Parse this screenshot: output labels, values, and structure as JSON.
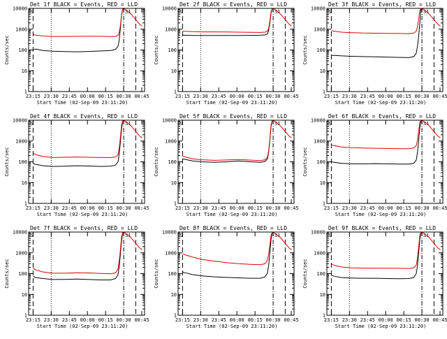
{
  "colors": {
    "events": "#000000",
    "lld": "#e00000",
    "background": "#ffffff",
    "axes": "#000000"
  },
  "common": {
    "xlabel": "Start Time (02-Sep-09 23:11:20)",
    "ylabel": "Counts/sec",
    "x_tick_labels": [
      "23:15",
      "23:30",
      "23:45",
      "00:00",
      "00:15",
      "00:30",
      "00:45"
    ],
    "y_tick_labels": [
      "1",
      "10",
      "100",
      "1000",
      "10000"
    ],
    "top_marker_labels": [
      "S",
      "S1"
    ]
  },
  "chart_data": [
    {
      "type": "line",
      "title": "Det 1f BLACK = Events, RED = LLD",
      "x_unit": "minutes after 23:11:20",
      "xlim": [
        0,
        96
      ],
      "ylim": [
        1,
        10000
      ],
      "yscale": "log",
      "vlines": {
        "dashed": [
          3.7,
          88.7
        ],
        "dotted": [
          18.7
        ],
        "dashdot": [
          78.7
        ]
      },
      "series": [
        {
          "x": [
            3.7,
            6,
            12,
            20,
            30,
            40,
            50,
            60,
            68,
            72,
            74,
            75,
            76,
            77,
            78
          ],
          "y": [
            105,
            110,
            95,
            88,
            84,
            82,
            85,
            90,
            95,
            108,
            150,
            300,
            1100,
            5000,
            10000
          ]
        },
        {
          "x": [
            3.7,
            6,
            12,
            20,
            30,
            40,
            50,
            60,
            68,
            72,
            74,
            75,
            76,
            77,
            78,
            80,
            84,
            88,
            92,
            94
          ],
          "y": [
            550,
            520,
            470,
            450,
            450,
            452,
            455,
            455,
            440,
            450,
            500,
            700,
            1500,
            5000,
            10000,
            9000,
            6000,
            3200,
            1700,
            1400
          ]
        }
      ]
    },
    {
      "type": "line",
      "title": "Det 2f BLACK = Events, RED = LLD",
      "x_unit": "minutes after 23:11:20",
      "xlim": [
        0,
        96
      ],
      "ylim": [
        1,
        10000
      ],
      "yscale": "log",
      "vlines": {
        "dashed": [
          3.7,
          88.7
        ],
        "dotted": [
          18.7
        ],
        "dashdot": [
          78.7
        ]
      },
      "series": [
        {
          "x": [
            3.7,
            6,
            12,
            20,
            30,
            40,
            50,
            60,
            68,
            72,
            74,
            75,
            76,
            77,
            78
          ],
          "y": [
            520,
            510,
            500,
            495,
            495,
            500,
            500,
            505,
            510,
            530,
            600,
            900,
            2000,
            6000,
            10000
          ]
        },
        {
          "x": [
            3.7,
            6,
            12,
            20,
            30,
            40,
            50,
            60,
            68,
            72,
            74,
            75,
            76,
            77,
            78,
            80,
            84,
            88,
            92,
            94
          ],
          "y": [
            800,
            790,
            760,
            740,
            740,
            730,
            720,
            710,
            700,
            720,
            800,
            1100,
            2500,
            7000,
            10000,
            9000,
            6000,
            3200,
            1700,
            1400
          ]
        }
      ]
    },
    {
      "type": "line",
      "title": "Det 3f BLACK = Events, RED = LLD",
      "x_unit": "minutes after 23:11:20",
      "xlim": [
        0,
        96
      ],
      "ylim": [
        1,
        10000
      ],
      "yscale": "log",
      "vlines": {
        "dashed": [
          3.7,
          88.7
        ],
        "dotted": [
          18.7
        ],
        "dashdot": [
          78.7
        ]
      },
      "series": [
        {
          "x": [
            3.7,
            6,
            12,
            20,
            30,
            40,
            50,
            60,
            68,
            72,
            74,
            75,
            76,
            77,
            78
          ],
          "y": [
            55,
            55,
            52,
            50,
            48,
            47,
            45,
            44,
            43,
            48,
            70,
            150,
            450,
            2000,
            10000
          ]
        },
        {
          "x": [
            3.7,
            6,
            12,
            20,
            30,
            40,
            50,
            60,
            68,
            72,
            74,
            75,
            76,
            77,
            78,
            80,
            84,
            88,
            92,
            94
          ],
          "y": [
            850,
            800,
            720,
            680,
            650,
            640,
            630,
            620,
            610,
            650,
            800,
            1300,
            3000,
            8000,
            10000,
            9000,
            6000,
            3200,
            1700,
            1400
          ]
        }
      ]
    },
    {
      "type": "line",
      "title": "Det 4f BLACK = Events, RED = LLD",
      "x_unit": "minutes after 23:11:20",
      "xlim": [
        0,
        96
      ],
      "ylim": [
        1,
        10000
      ],
      "yscale": "log",
      "vlines": {
        "dashed": [
          3.7,
          88.7
        ],
        "dotted": [
          18.7
        ],
        "dashdot": [
          78.7
        ]
      },
      "series": [
        {
          "x": [
            3.7,
            6,
            12,
            20,
            30,
            40,
            50,
            60,
            68,
            72,
            74,
            75,
            76,
            77,
            78
          ],
          "y": [
            80,
            75,
            65,
            60,
            62,
            65,
            63,
            60,
            62,
            70,
            100,
            250,
            900,
            4000,
            10000
          ]
        },
        {
          "x": [
            3.7,
            6,
            12,
            20,
            30,
            40,
            50,
            60,
            68,
            72,
            74,
            75,
            76,
            77,
            78,
            80,
            84,
            88,
            92,
            94
          ],
          "y": [
            260,
            220,
            180,
            160,
            165,
            170,
            165,
            160,
            160,
            170,
            220,
            450,
            1500,
            6000,
            10000,
            9000,
            6000,
            3200,
            1700,
            1400
          ]
        }
      ]
    },
    {
      "type": "line",
      "title": "Det 5f BLACK = Events, RED = LLD",
      "x_unit": "minutes after 23:11:20",
      "xlim": [
        0,
        96
      ],
      "ylim": [
        1,
        10000
      ],
      "yscale": "log",
      "vlines": {
        "dashed": [
          3.7,
          88.7
        ],
        "dotted": [
          18.7
        ],
        "dashdot": [
          78.7
        ]
      },
      "series": [
        {
          "x": [
            3.7,
            6,
            12,
            20,
            30,
            40,
            50,
            60,
            68,
            72,
            74,
            75,
            76,
            77,
            78
          ],
          "y": [
            140,
            130,
            110,
            100,
            95,
            100,
            110,
            100,
            95,
            105,
            140,
            300,
            1100,
            5000,
            10000
          ]
        },
        {
          "x": [
            3.7,
            6,
            12,
            20,
            30,
            40,
            50,
            60,
            68,
            72,
            74,
            75,
            76,
            77,
            78,
            80,
            84,
            88,
            92,
            94
          ],
          "y": [
            190,
            170,
            140,
            125,
            118,
            122,
            130,
            120,
            115,
            125,
            170,
            350,
            1300,
            6000,
            10000,
            9000,
            6000,
            3200,
            1700,
            1400
          ]
        }
      ]
    },
    {
      "type": "line",
      "title": "Det 6f BLACK = Events, RED = LLD",
      "x_unit": "minutes after 23:11:20",
      "xlim": [
        0,
        96
      ],
      "ylim": [
        1,
        10000
      ],
      "yscale": "log",
      "vlines": {
        "dashed": [
          3.7,
          88.7
        ],
        "dotted": [
          18.7
        ],
        "dashdot": [
          78.7
        ]
      },
      "series": [
        {
          "x": [
            3.7,
            6,
            12,
            20,
            30,
            40,
            50,
            60,
            68,
            72,
            74,
            75,
            76,
            77,
            78
          ],
          "y": [
            100,
            95,
            85,
            80,
            80,
            82,
            80,
            78,
            78,
            85,
            120,
            280,
            1000,
            4500,
            10000
          ]
        },
        {
          "x": [
            3.7,
            6,
            12,
            20,
            30,
            40,
            50,
            60,
            68,
            72,
            74,
            75,
            76,
            77,
            78,
            80,
            84,
            88,
            92,
            94
          ],
          "y": [
            650,
            600,
            520,
            480,
            460,
            450,
            440,
            430,
            430,
            460,
            600,
            1100,
            3000,
            8000,
            10000,
            9000,
            6000,
            3200,
            1700,
            1400
          ]
        }
      ]
    },
    {
      "type": "line",
      "title": "Det 7f BLACK = Events, RED = LLD",
      "x_unit": "minutes after 23:11:20",
      "xlim": [
        0,
        96
      ],
      "ylim": [
        1,
        10000
      ],
      "yscale": "log",
      "vlines": {
        "dashed": [
          3.7,
          88.7
        ],
        "dotted": [
          18.7
        ],
        "dashdot": [
          78.7
        ]
      },
      "series": [
        {
          "x": [
            3.7,
            6,
            12,
            20,
            30,
            40,
            50,
            60,
            68,
            72,
            74,
            75,
            76,
            77,
            78
          ],
          "y": [
            75,
            65,
            58,
            52,
            53,
            55,
            52,
            50,
            50,
            58,
            90,
            220,
            900,
            4000,
            10000
          ]
        },
        {
          "x": [
            3.7,
            6,
            12,
            20,
            30,
            40,
            50,
            60,
            68,
            72,
            74,
            75,
            76,
            77,
            78,
            80,
            84,
            88,
            92,
            94
          ],
          "y": [
            180,
            150,
            120,
            105,
            105,
            110,
            108,
            102,
            98,
            110,
            170,
            400,
            1400,
            6000,
            10000,
            9000,
            6000,
            3200,
            1700,
            1400
          ]
        }
      ]
    },
    {
      "type": "line",
      "title": "Det 8f BLACK = Events, RED = LLD",
      "x_unit": "minutes after 23:11:20",
      "xlim": [
        0,
        96
      ],
      "ylim": [
        1,
        10000
      ],
      "yscale": "log",
      "vlines": {
        "dashed": [
          3.7,
          88.7
        ],
        "dotted": [
          18.7
        ],
        "dashdot": [
          78.7
        ]
      },
      "series": [
        {
          "x": [
            3.7,
            6,
            12,
            20,
            30,
            40,
            50,
            60,
            68,
            72,
            74,
            75,
            76,
            77,
            78
          ],
          "y": [
            120,
            110,
            90,
            78,
            70,
            66,
            63,
            60,
            60,
            70,
            110,
            260,
            1000,
            4500,
            10000
          ]
        },
        {
          "x": [
            3.7,
            6,
            12,
            20,
            30,
            40,
            50,
            60,
            68,
            72,
            74,
            75,
            76,
            77,
            78,
            80,
            84,
            88,
            92,
            94
          ],
          "y": [
            900,
            800,
            620,
            480,
            400,
            340,
            300,
            280,
            270,
            300,
            450,
            900,
            2500,
            7000,
            10000,
            9000,
            6000,
            3200,
            1700,
            1400
          ]
        }
      ]
    },
    {
      "type": "line",
      "title": "Det 9f BLACK = Events, RED = LLD",
      "x_unit": "minutes after 23:11:20",
      "xlim": [
        0,
        96
      ],
      "ylim": [
        1,
        10000
      ],
      "yscale": "log",
      "vlines": {
        "dashed": [
          3.7,
          88.7
        ],
        "dotted": [
          18.7
        ],
        "dashdot": [
          78.7
        ]
      },
      "series": [
        {
          "x": [
            3.7,
            6,
            12,
            20,
            30,
            40,
            50,
            60,
            68,
            72,
            74,
            75,
            76,
            77,
            78
          ],
          "y": [
            85,
            75,
            65,
            62,
            60,
            60,
            58,
            57,
            58,
            66,
            100,
            240,
            950,
            4500,
            10000
          ]
        },
        {
          "x": [
            3.7,
            6,
            12,
            20,
            30,
            40,
            50,
            60,
            68,
            72,
            74,
            75,
            76,
            77,
            78,
            80,
            84,
            88,
            92,
            94
          ],
          "y": [
            300,
            250,
            210,
            190,
            185,
            185,
            182,
            180,
            178,
            190,
            260,
            550,
            1800,
            7000,
            10000,
            9000,
            6000,
            3200,
            1700,
            1400
          ]
        }
      ]
    }
  ]
}
